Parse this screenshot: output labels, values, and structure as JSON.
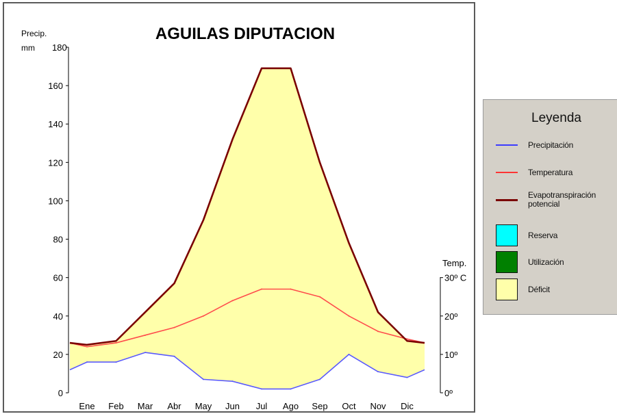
{
  "chart_data": {
    "type": "line",
    "title": "AGUILAS DIPUTACION",
    "y_left_label_line1": "Precip.",
    "y_left_label_line2": "mm",
    "y_right_label_line1": "Temp.",
    "categories": [
      "Ene",
      "Feb",
      "Mar",
      "Abr",
      "May",
      "Jun",
      "Jul",
      "Ago",
      "Sep",
      "Oct",
      "Nov",
      "Dic"
    ],
    "y_left_ticks": [
      "0",
      "20",
      "40",
      "60",
      "80",
      "100",
      "120",
      "140",
      "160",
      "180"
    ],
    "y_right_ticks": [
      "0º",
      "10º",
      "20º",
      "30º C"
    ],
    "ylim": [
      0,
      180
    ],
    "series": [
      {
        "name": "Precipitación",
        "color": "#5a5aff",
        "values": [
          16,
          16,
          21,
          19,
          7,
          6,
          2,
          2,
          7,
          20,
          11,
          8
        ]
      },
      {
        "name": "Temperatura",
        "color": "#ff4c4c",
        "values": [
          24,
          26,
          30,
          34,
          40,
          48,
          54,
          54,
          50,
          40,
          32,
          28
        ]
      },
      {
        "name": "Evapotranspiración potencial",
        "color": "#7a0000",
        "values": [
          25,
          27,
          42,
          57,
          90,
          132,
          169,
          169,
          120,
          78,
          42,
          27
        ]
      }
    ],
    "line_endpoints": {
      "Precipitación": [
        12,
        12
      ],
      "Temperatura": [
        26,
        26
      ],
      "Evapotranspiración potencial": [
        26,
        26
      ]
    },
    "fills": {
      "Deficit": "#ffffaa"
    }
  },
  "legend": {
    "title": "Leyenda",
    "items": [
      {
        "label": "Precipitación",
        "kind": "line",
        "color": "#3b3bff"
      },
      {
        "label": "Temperatura",
        "kind": "line",
        "color": "#ff3333"
      },
      {
        "label": "Evapotranspiración potencial",
        "kind": "thick-line",
        "color": "#7a0000"
      },
      {
        "label": "Reserva",
        "kind": "box",
        "color": "#00ffff"
      },
      {
        "label": "Utilización",
        "kind": "box",
        "color": "#008000"
      },
      {
        "label": "Déficit",
        "kind": "box",
        "color": "#ffffaa"
      }
    ]
  }
}
